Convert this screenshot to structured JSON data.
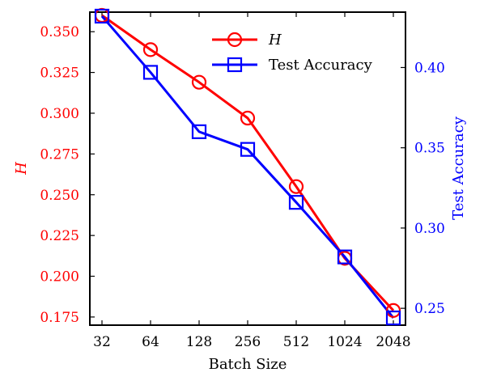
{
  "chart_data": {
    "type": "line",
    "categories": [
      "32",
      "64",
      "128",
      "256",
      "512",
      "1024",
      "2048"
    ],
    "xlabel": "Batch Size",
    "ylabel_left": "H",
    "ylabel_right": "Test Accuracy",
    "ylim_left": [
      0.17,
      0.362
    ],
    "ylim_right": [
      0.2395,
      0.4345
    ],
    "yticks_left": [
      "0.175",
      "0.200",
      "0.225",
      "0.250",
      "0.275",
      "0.300",
      "0.325",
      "0.350"
    ],
    "yticks_right": [
      "0.25",
      "0.30",
      "0.35",
      "0.40"
    ],
    "grid": false,
    "legend_position": "top-center",
    "series": [
      {
        "name": "H",
        "axis": "left",
        "marker": "circle",
        "color": "#ff0000",
        "values": [
          0.36,
          0.339,
          0.319,
          0.297,
          0.255,
          0.211,
          0.179
        ]
      },
      {
        "name": "Test Accuracy",
        "axis": "right",
        "marker": "square",
        "color": "#0000ff",
        "values": [
          0.432,
          0.397,
          0.36,
          0.349,
          0.316,
          0.282,
          0.244
        ]
      }
    ]
  }
}
